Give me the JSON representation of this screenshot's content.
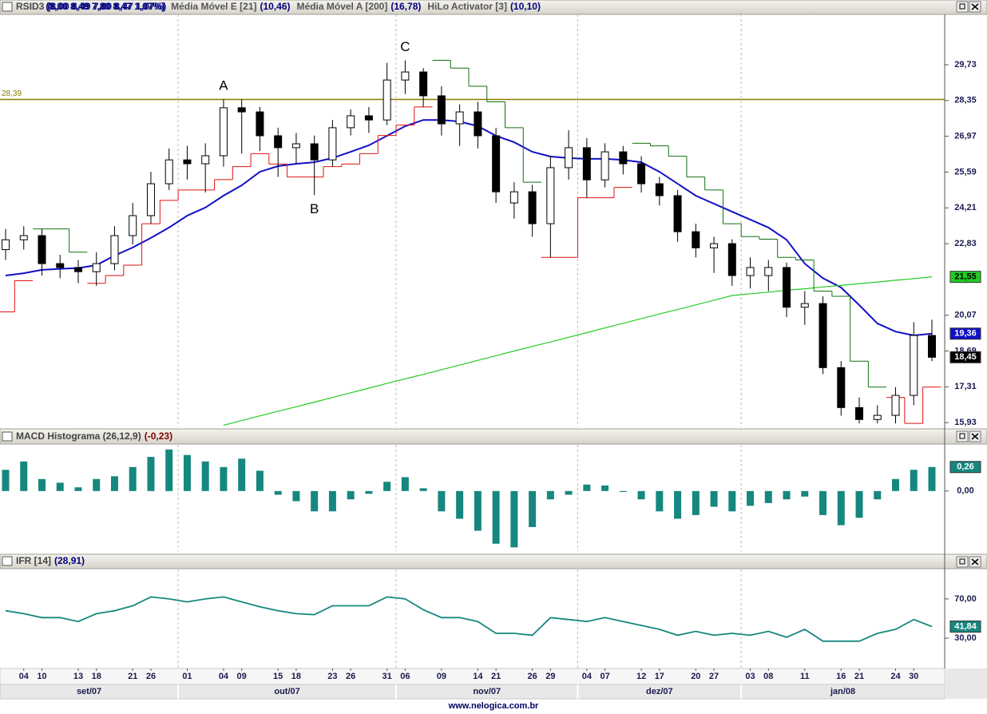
{
  "chart_data": [
    {
      "type": "candlestick",
      "name": "RSID3",
      "reading": "(8,00  8,49  7,80  8,47  1,07%)",
      "categories": [
        null,
        "04",
        "10",
        null,
        "13",
        "18",
        null,
        "21",
        "26",
        null,
        "01",
        null,
        "04",
        "09",
        null,
        "15",
        "18",
        null,
        "23",
        "26",
        null,
        "31",
        "06",
        null,
        "09",
        null,
        "14",
        "21",
        null,
        "26",
        "29",
        null,
        "04",
        "07",
        null,
        "12",
        "17",
        null,
        "20",
        "27",
        null,
        "03",
        "08",
        null,
        "11",
        null,
        "16",
        "21",
        null,
        "24",
        "30",
        null
      ],
      "months": [
        "set/07",
        "out/07",
        "nov/07",
        "dez/07",
        "jan/08"
      ],
      "open": [
        22.6,
        22.98,
        23.14,
        22.06,
        21.91,
        21.75,
        22.06,
        23.14,
        23.91,
        25.14,
        26.06,
        25.91,
        26.22,
        28.07,
        27.91,
        26.99,
        26.53,
        26.68,
        26.06,
        27.3,
        27.76,
        27.6,
        29.14,
        29.45,
        28.53,
        27.45,
        27.91,
        26.99,
        24.4,
        24.83,
        23.6,
        25.76,
        26.53,
        25.29,
        26.37,
        25.91,
        25.14,
        24.68,
        23.29,
        22.67,
        22.83,
        21.6,
        21.6,
        21.91,
        20.38,
        20.52,
        18.05,
        16.51,
        16.05,
        16.21,
        16.98,
        19.29
      ],
      "high": [
        23.4,
        23.5,
        23.4,
        22.4,
        22.2,
        22.5,
        23.5,
        24.4,
        25.6,
        26.5,
        26.6,
        26.7,
        28.4,
        28.4,
        28.1,
        27.3,
        27.1,
        27.0,
        27.6,
        28.0,
        28.1,
        29.8,
        29.9,
        29.6,
        28.9,
        28.2,
        28.3,
        27.3,
        25.2,
        25.1,
        26.2,
        27.2,
        26.9,
        26.7,
        26.6,
        26.2,
        25.4,
        24.9,
        23.6,
        23.1,
        23.0,
        22.3,
        22.2,
        22.1,
        21.0,
        20.8,
        18.3,
        16.9,
        16.6,
        17.3,
        19.8,
        19.9
      ],
      "low": [
        22.2,
        22.6,
        21.6,
        21.5,
        21.3,
        21.2,
        21.8,
        22.8,
        23.6,
        24.9,
        25.3,
        24.8,
        25.8,
        26.3,
        26.4,
        25.4,
        25.9,
        24.7,
        25.8,
        27.0,
        27.1,
        27.4,
        28.6,
        28.1,
        27.0,
        26.6,
        26.5,
        24.4,
        23.8,
        23.1,
        22.3,
        25.3,
        24.6,
        25.0,
        25.5,
        24.8,
        24.3,
        22.9,
        22.3,
        21.7,
        21.2,
        21.1,
        21.0,
        20.0,
        19.7,
        17.8,
        16.2,
        15.9,
        15.9,
        15.9,
        16.6,
        18.3
      ],
      "close": [
        22.98,
        23.14,
        22.06,
        21.91,
        21.75,
        22.06,
        23.14,
        23.91,
        25.14,
        26.06,
        25.91,
        26.22,
        28.07,
        27.91,
        26.99,
        26.53,
        26.68,
        26.06,
        27.3,
        27.76,
        27.6,
        29.14,
        29.45,
        28.53,
        27.45,
        27.91,
        26.99,
        24.83,
        24.83,
        23.6,
        25.76,
        26.53,
        25.29,
        26.37,
        25.91,
        25.14,
        24.68,
        23.29,
        22.67,
        22.83,
        21.6,
        21.91,
        21.91,
        20.38,
        20.52,
        18.05,
        16.51,
        16.05,
        16.21,
        16.98,
        19.29,
        18.45
      ],
      "up_color": "#ffffff",
      "down_color": "#000000",
      "last_label": "18,45",
      "overlays": [
        {
          "type": "line",
          "name": "Média Móvel E [21]",
          "reading": "(10,46)",
          "color": "#1010c8",
          "last_label": "19,36",
          "values": [
            21.6,
            21.69,
            21.82,
            21.86,
            21.89,
            22.0,
            22.37,
            22.68,
            23.05,
            23.45,
            23.91,
            24.22,
            24.68,
            25.08,
            25.6,
            25.82,
            25.91,
            25.97,
            26.13,
            26.37,
            26.62,
            26.99,
            27.36,
            27.6,
            27.6,
            27.54,
            27.36,
            26.99,
            26.74,
            26.37,
            26.19,
            26.13,
            26.1,
            26.1,
            26.06,
            25.97,
            25.6,
            25.14,
            24.68,
            24.37,
            24.06,
            23.76,
            23.45,
            22.98,
            22.06,
            21.5,
            21.14,
            20.46,
            19.75,
            19.44,
            19.29,
            19.36
          ]
        },
        {
          "type": "line",
          "name": "Média Móvel A [200]",
          "reading": "(16,78)",
          "color": "#22cc22",
          "last_label": "21,55",
          "values": [
            null,
            null,
            null,
            null,
            null,
            null,
            null,
            null,
            null,
            null,
            null,
            null,
            15.83,
            16.01,
            16.19,
            16.37,
            16.54,
            16.72,
            16.9,
            17.08,
            17.26,
            17.44,
            17.62,
            17.79,
            17.97,
            18.15,
            18.33,
            18.51,
            18.69,
            18.87,
            19.04,
            19.22,
            19.4,
            19.58,
            19.76,
            19.94,
            20.12,
            20.29,
            20.47,
            20.65,
            20.83,
            20.9,
            20.96,
            21.03,
            21.09,
            21.16,
            21.22,
            21.29,
            21.35,
            21.42,
            21.48,
            21.55
          ]
        },
        {
          "type": "step",
          "name": "HiLo Activator [3]",
          "reading": "(10,10)",
          "up_color": "#e01010",
          "down_color": "#107010",
          "values": [
            20.2,
            21.4,
            23.4,
            23.4,
            22.5,
            21.3,
            21.6,
            22.0,
            23.6,
            24.5,
            24.9,
            24.9,
            25.3,
            25.8,
            26.3,
            25.9,
            25.4,
            25.4,
            25.8,
            25.9,
            26.3,
            27.0,
            27.4,
            28.1,
            29.9,
            29.6,
            28.9,
            28.3,
            27.3,
            25.2,
            22.3,
            22.3,
            24.6,
            24.6,
            25.0,
            26.7,
            26.6,
            26.2,
            25.4,
            24.9,
            23.6,
            23.1,
            23.0,
            22.3,
            22.2,
            21.0,
            20.8,
            18.3,
            17.3,
            16.9,
            15.9,
            17.3
          ]
        }
      ],
      "hline": {
        "value": 28.39,
        "label": "28,39",
        "color": "#8a7a00"
      },
      "annotations": [
        {
          "text": "A",
          "index": 12
        },
        {
          "text": "B",
          "index": 17
        },
        {
          "text": "C",
          "index": 22
        }
      ],
      "ylim": [
        15.75,
        31.67
      ],
      "yticks": [
        {
          "value": 29.73,
          "label": "29,73"
        },
        {
          "value": 28.35,
          "label": "28,35"
        },
        {
          "value": 26.97,
          "label": "26,97"
        },
        {
          "value": 25.59,
          "label": "25,59"
        },
        {
          "value": 24.21,
          "label": "24,21"
        },
        {
          "value": 22.83,
          "label": "22,83"
        },
        {
          "value": 20.07,
          "label": "20,07"
        },
        {
          "value": 18.69,
          "label": "18,69"
        },
        {
          "value": 17.31,
          "label": "17,31"
        },
        {
          "value": 15.93,
          "label": "15,93"
        }
      ]
    },
    {
      "type": "bar",
      "name": "MACD Histograma (26,12,9)",
      "reading": "(-0,23)",
      "color": "#16877f",
      "last_label": "0,26",
      "values": [
        0.23,
        0.32,
        0.13,
        0.09,
        0.04,
        0.13,
        0.16,
        0.26,
        0.37,
        0.45,
        0.39,
        0.32,
        0.26,
        0.35,
        0.22,
        -0.04,
        -0.11,
        -0.22,
        -0.22,
        -0.09,
        -0.03,
        0.1,
        0.15,
        0.03,
        -0.22,
        -0.3,
        -0.43,
        -0.57,
        -0.61,
        -0.39,
        -0.09,
        -0.04,
        0.07,
        0.06,
        -0.01,
        -0.09,
        -0.22,
        -0.3,
        -0.26,
        -0.17,
        -0.22,
        -0.16,
        -0.13,
        -0.09,
        -0.06,
        -0.26,
        -0.37,
        -0.29,
        -0.09,
        0.13,
        0.23,
        0.26
      ],
      "ylim": [
        -0.65,
        0.5
      ],
      "yticks": [
        {
          "value": 0,
          "label": "0,00"
        }
      ]
    },
    {
      "type": "line",
      "name": "IFR [14]",
      "reading": "(28,91)",
      "color": "#16877f",
      "last_label": "41,84",
      "values": [
        58,
        55,
        51,
        51,
        47,
        55,
        58,
        63,
        72,
        70,
        67,
        70,
        72,
        67,
        62,
        58,
        55,
        54,
        63,
        63,
        63,
        72,
        70,
        59,
        51,
        51,
        47,
        35,
        35,
        33,
        51,
        49,
        47,
        51,
        47,
        43,
        39,
        33,
        37,
        33,
        35,
        33,
        37,
        31,
        39,
        27,
        27,
        27,
        35,
        39,
        49,
        41.84
      ],
      "ylim": [
        0,
        100
      ],
      "yticks": [
        {
          "value": 70,
          "label": "70,00"
        },
        {
          "value": 30,
          "label": "30,00"
        }
      ]
    }
  ],
  "footer": "www.nelogica.com.br"
}
